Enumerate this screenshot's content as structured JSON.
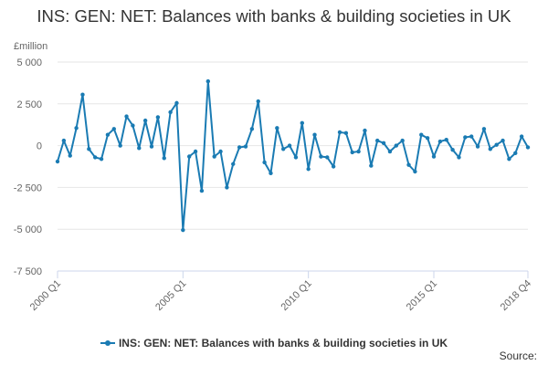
{
  "chart_data": {
    "type": "line",
    "title": "INS: GEN: NET: Balances with banks & building societies in UK",
    "ylabel": "£million",
    "xlabel": "",
    "ylim": [
      -7500,
      5000
    ],
    "yticks": [
      5000,
      2500,
      0,
      -2500,
      -5000,
      -7500
    ],
    "ytick_labels": [
      "5 000",
      "2 500",
      "0",
      "-2 500",
      "-5 000",
      "-7 500"
    ],
    "xtick_labels": [
      {
        "label": "2000 Q1",
        "index": 0
      },
      {
        "label": "2005 Q1",
        "index": 20
      },
      {
        "label": "2010 Q1",
        "index": 40
      },
      {
        "label": "2015 Q1",
        "index": 60
      },
      {
        "label": "2018 Q4",
        "index": 75
      }
    ],
    "grid": true,
    "legend_position": "bottom",
    "color": "#1a7bb3",
    "series": [
      {
        "name": "INS: GEN: NET: Balances with banks & building societies in UK",
        "values": [
          -950,
          300,
          -600,
          1050,
          3050,
          -200,
          -700,
          -800,
          650,
          1000,
          0,
          1750,
          1200,
          -150,
          1500,
          -50,
          1700,
          -750,
          2000,
          2550,
          -5050,
          -650,
          -350,
          -2700,
          3850,
          -650,
          -350,
          -2500,
          -1100,
          -100,
          -50,
          1000,
          2650,
          -1000,
          -1650,
          1050,
          -200,
          0,
          -700,
          1350,
          -1400,
          650,
          -650,
          -700,
          -1250,
          800,
          750,
          -400,
          -350,
          900,
          -1200,
          300,
          150,
          -350,
          0,
          300,
          -1150,
          -1550,
          650,
          450,
          -650,
          250,
          350,
          -250,
          -700,
          500,
          550,
          -50,
          1000,
          -200,
          50,
          300,
          -800,
          -450,
          550,
          -100
        ]
      }
    ]
  },
  "legend": {
    "label": "INS: GEN: NET: Balances with banks & building societies in UK"
  },
  "source_label": "Source:"
}
